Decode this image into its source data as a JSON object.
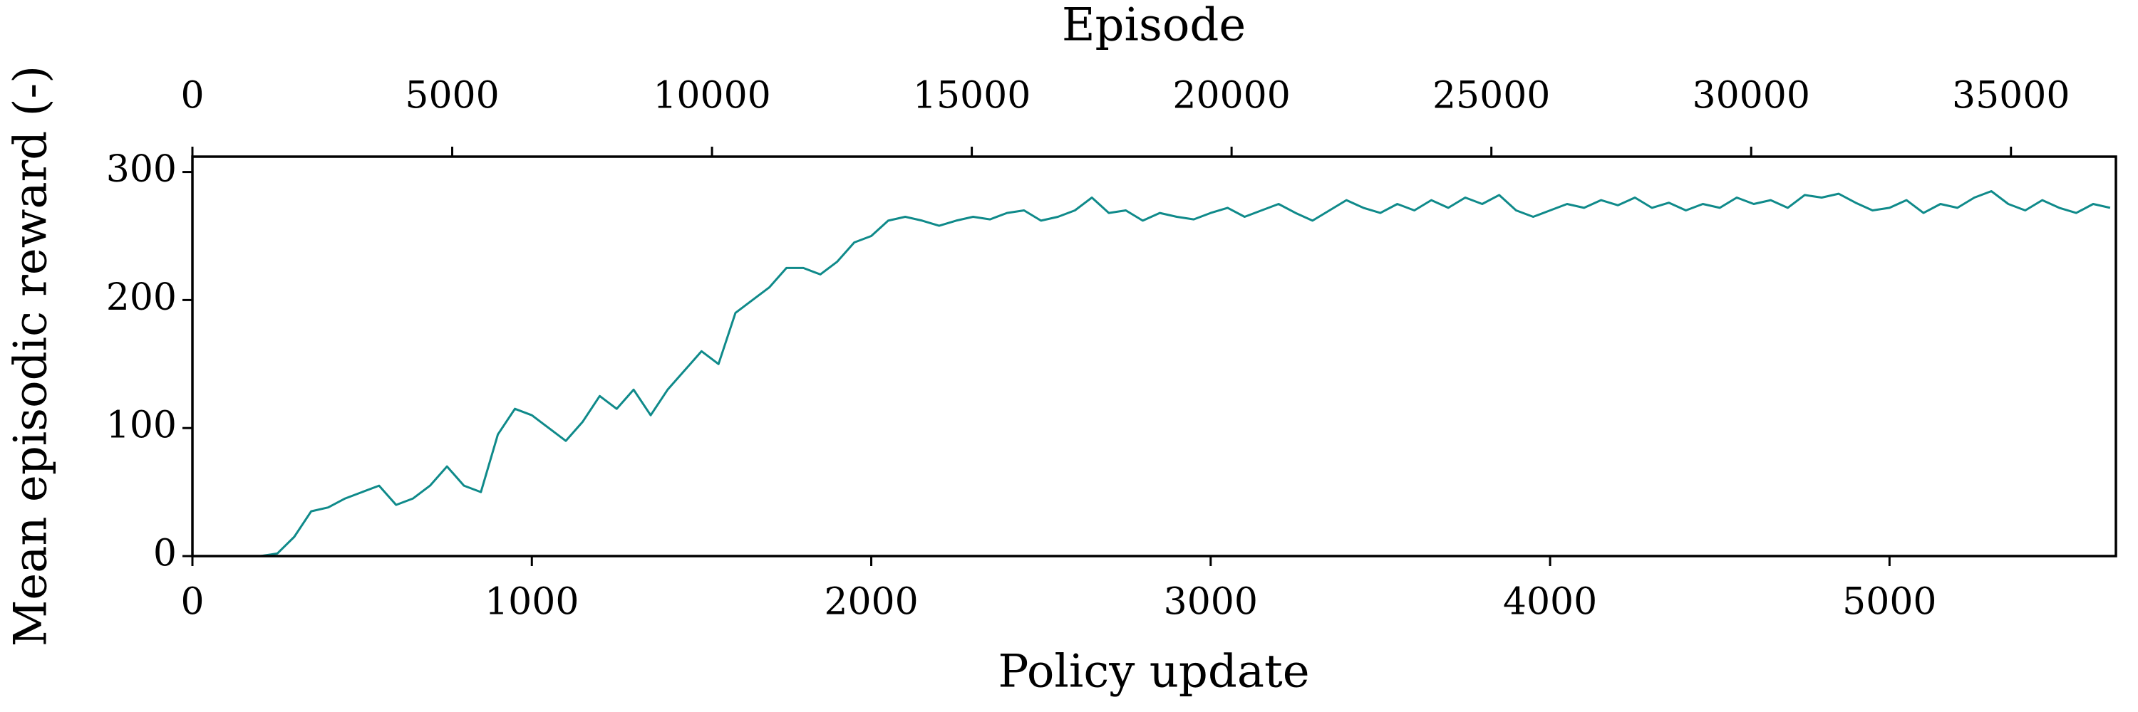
{
  "chart_data": {
    "type": "line",
    "xlabel": "Policy update",
    "ylabel": "Mean episodic reward (-)",
    "x2label": "Episode",
    "x": [
      0,
      50,
      100,
      150,
      200,
      250,
      300,
      350,
      400,
      450,
      500,
      550,
      600,
      650,
      700,
      750,
      800,
      850,
      900,
      950,
      1000,
      1050,
      1100,
      1150,
      1200,
      1250,
      1300,
      1350,
      1400,
      1450,
      1500,
      1550,
      1600,
      1650,
      1700,
      1750,
      1800,
      1850,
      1900,
      1950,
      2000,
      2050,
      2100,
      2150,
      2200,
      2250,
      2300,
      2350,
      2400,
      2450,
      2500,
      2550,
      2600,
      2650,
      2700,
      2750,
      2800,
      2850,
      2900,
      2950,
      3000,
      3050,
      3100,
      3150,
      3200,
      3250,
      3300,
      3350,
      3400,
      3450,
      3500,
      3550,
      3600,
      3650,
      3700,
      3750,
      3800,
      3850,
      3900,
      3950,
      4000,
      4050,
      4100,
      4150,
      4200,
      4250,
      4300,
      4350,
      4400,
      4450,
      4500,
      4550,
      4600,
      4650,
      4700,
      4750,
      4800,
      4850,
      4900,
      4950,
      5000,
      5050,
      5100,
      5150,
      5200,
      5250,
      5300,
      5350,
      5400,
      5450,
      5500,
      5550,
      5600,
      5650
    ],
    "series": [
      {
        "color": "#0f8a8a",
        "values": [
          0,
          0,
          0,
          0,
          0,
          2,
          15,
          35,
          38,
          45,
          50,
          55,
          40,
          45,
          55,
          70,
          55,
          50,
          95,
          115,
          110,
          100,
          90,
          105,
          125,
          115,
          130,
          110,
          130,
          145,
          160,
          150,
          190,
          200,
          210,
          225,
          225,
          220,
          230,
          245,
          250,
          262,
          265,
          262,
          258,
          262,
          265,
          263,
          268,
          270,
          262,
          265,
          270,
          280,
          268,
          270,
          262,
          268,
          265,
          263,
          268,
          272,
          265,
          270,
          275,
          268,
          262,
          270,
          278,
          272,
          268,
          275,
          270,
          278,
          272,
          280,
          275,
          282,
          270,
          265,
          270,
          275,
          272,
          278,
          274,
          280,
          272,
          276,
          270,
          275,
          272,
          280,
          275,
          278,
          272,
          282,
          280,
          283,
          276,
          270,
          272,
          278,
          268,
          275,
          272,
          280,
          285,
          275,
          270,
          278,
          272,
          268,
          275,
          272
        ]
      }
    ],
    "xlim": [
      0,
      5667
    ],
    "xticks": [
      0,
      1000,
      2000,
      3000,
      4000,
      5000
    ],
    "ylim": [
      0,
      312
    ],
    "yticks": [
      0,
      100,
      200,
      300
    ],
    "x2lim": [
      0,
      37020
    ],
    "x2ticks": [
      0,
      5000,
      10000,
      15000,
      20000,
      25000,
      30000,
      35000
    ]
  }
}
